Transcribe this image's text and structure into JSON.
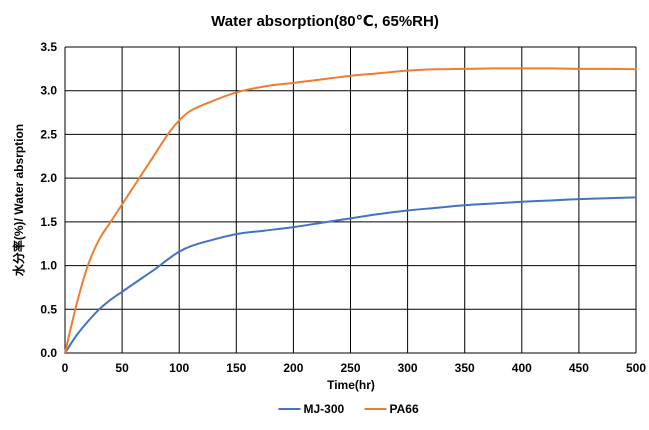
{
  "chart_data": {
    "type": "line",
    "title": "Water absorption(80℃, 65%RH)",
    "xlabel": "Time(hr)",
    "ylabel": "水分率(%)/ Water absrption",
    "xlim": [
      0,
      500
    ],
    "ylim": [
      0,
      3.5
    ],
    "x_ticks": [
      0,
      50,
      100,
      150,
      200,
      250,
      300,
      350,
      400,
      450,
      500
    ],
    "y_ticks": [
      "0.0",
      "0.5",
      "1.0",
      "1.5",
      "2.0",
      "2.5",
      "3.0",
      "3.5"
    ],
    "grid": true,
    "legend_position": "bottom",
    "series": [
      {
        "name": "MJ-300",
        "color": "#4472C4",
        "x": [
          0,
          10,
          20,
          30,
          40,
          50,
          60,
          70,
          80,
          90,
          100,
          110,
          125,
          150,
          175,
          200,
          225,
          250,
          275,
          300,
          325,
          350,
          375,
          400,
          425,
          450,
          475,
          500
        ],
        "y": [
          0,
          0.2,
          0.36,
          0.5,
          0.61,
          0.7,
          0.79,
          0.88,
          0.97,
          1.07,
          1.16,
          1.22,
          1.28,
          1.36,
          1.4,
          1.44,
          1.49,
          1.54,
          1.59,
          1.63,
          1.66,
          1.69,
          1.71,
          1.73,
          1.745,
          1.76,
          1.77,
          1.78
        ]
      },
      {
        "name": "PA66",
        "color": "#ED7D31",
        "x": [
          0,
          10,
          20,
          30,
          40,
          50,
          60,
          70,
          80,
          90,
          100,
          110,
          125,
          150,
          175,
          200,
          225,
          250,
          275,
          300,
          325,
          350,
          375,
          400,
          425,
          450,
          475,
          500
        ],
        "y": [
          0,
          0.55,
          1.0,
          1.3,
          1.5,
          1.7,
          1.9,
          2.1,
          2.3,
          2.5,
          2.66,
          2.77,
          2.86,
          2.98,
          3.05,
          3.09,
          3.13,
          3.17,
          3.2,
          3.23,
          3.245,
          3.25,
          3.255,
          3.255,
          3.255,
          3.25,
          3.25,
          3.245
        ]
      }
    ]
  }
}
